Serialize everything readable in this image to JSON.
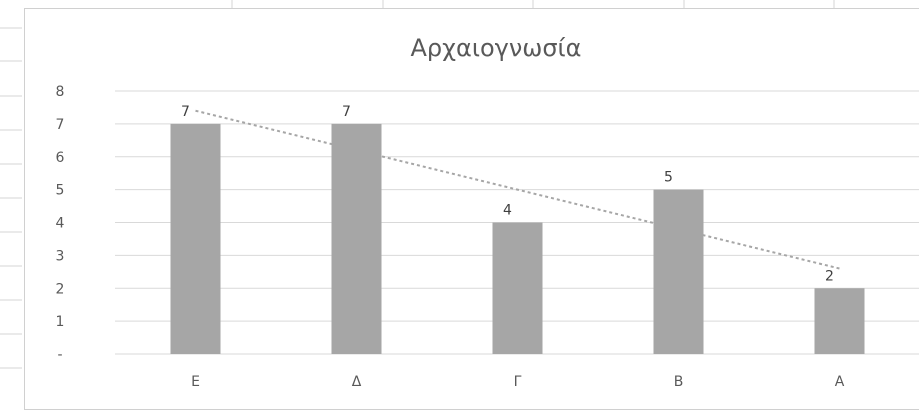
{
  "chart_data": {
    "type": "bar",
    "title": "Αρχαιογνωσία",
    "categories": [
      "Ε",
      "Δ",
      "Γ",
      "Β",
      "Α"
    ],
    "values": [
      7,
      7,
      4,
      5,
      2
    ],
    "data_labels": [
      "7",
      "7",
      "4",
      "5",
      "2"
    ],
    "ylim": [
      0,
      8
    ],
    "yticks": [
      {
        "value": 0,
        "label": "-"
      },
      {
        "value": 1,
        "label": "1"
      },
      {
        "value": 2,
        "label": "2"
      },
      {
        "value": 3,
        "label": "3"
      },
      {
        "value": 4,
        "label": "4"
      },
      {
        "value": 5,
        "label": "5"
      },
      {
        "value": 6,
        "label": "6"
      },
      {
        "value": 7,
        "label": "7"
      },
      {
        "value": 8,
        "label": "8"
      }
    ],
    "grid": true,
    "trendline": "linear",
    "xlabel": "",
    "ylabel": "",
    "colors": {
      "bar": "#a6a6a6",
      "trend": "#a6a6a6",
      "grid": "#d9d9d9",
      "text": "#595959"
    }
  }
}
